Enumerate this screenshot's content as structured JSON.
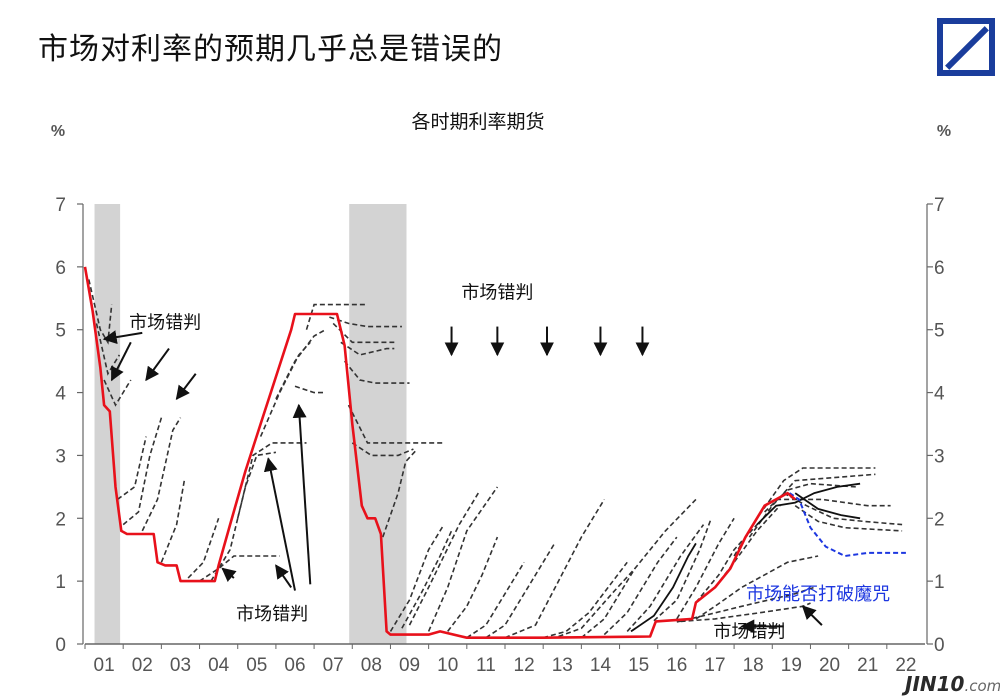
{
  "header": {
    "title": "市场对利率的预期几乎总是错误的"
  },
  "brand": {
    "logo": "deutsche-bank-logo",
    "color": "#1a3d9c"
  },
  "watermark": {
    "text": "JIN10",
    "suffix": ".com"
  },
  "chart_data": {
    "type": "line",
    "title": "各时期利率期货",
    "ylabel_left": "%",
    "ylabel_right": "%",
    "ylim": [
      0,
      7
    ],
    "yticks": [
      "0",
      "1",
      "2",
      "3",
      "4",
      "5",
      "6",
      "7"
    ],
    "xlim": [
      2001,
      2023
    ],
    "xticks": [
      "01",
      "02",
      "03",
      "04",
      "05",
      "06",
      "07",
      "08",
      "09",
      "10",
      "11",
      "12",
      "13",
      "14",
      "15",
      "16",
      "17",
      "18",
      "19",
      "20",
      "21",
      "22"
    ],
    "colors": {
      "actual": "#e8111b",
      "futures": "#333333",
      "latest_futures": "#1d37e0",
      "recession": "#d3d3d3"
    },
    "recessions": [
      [
        2001.25,
        2001.92
      ],
      [
        2007.92,
        2009.42
      ]
    ],
    "series": [
      {
        "values": [
          [
            2001.0,
            6.0
          ],
          [
            2001.2,
            5.3
          ],
          [
            2001.4,
            4.4
          ],
          [
            2001.5,
            3.8
          ],
          [
            2001.65,
            3.7
          ],
          [
            2001.8,
            2.5
          ],
          [
            2001.95,
            1.8
          ],
          [
            2002.1,
            1.75
          ],
          [
            2002.5,
            1.75
          ],
          [
            2002.8,
            1.75
          ],
          [
            2002.9,
            1.3
          ],
          [
            2003.1,
            1.25
          ],
          [
            2003.4,
            1.25
          ],
          [
            2003.5,
            1.0
          ],
          [
            2004.4,
            1.0
          ],
          [
            2004.5,
            1.25
          ],
          [
            2004.8,
            1.9
          ],
          [
            2005.2,
            2.75
          ],
          [
            2005.6,
            3.5
          ],
          [
            2006.0,
            4.25
          ],
          [
            2006.4,
            5.0
          ],
          [
            2006.5,
            5.25
          ],
          [
            2007.6,
            5.25
          ],
          [
            2007.8,
            4.75
          ],
          [
            2008.0,
            3.5
          ],
          [
            2008.25,
            2.2
          ],
          [
            2008.4,
            2.0
          ],
          [
            2008.6,
            2.0
          ],
          [
            2008.75,
            1.75
          ],
          [
            2008.9,
            0.2
          ],
          [
            2009.0,
            0.15
          ],
          [
            2010.0,
            0.15
          ],
          [
            2010.3,
            0.2
          ],
          [
            2011.0,
            0.1
          ],
          [
            2013.0,
            0.1
          ],
          [
            2015.8,
            0.12
          ],
          [
            2015.95,
            0.36
          ],
          [
            2016.9,
            0.4
          ],
          [
            2017.0,
            0.66
          ],
          [
            2017.5,
            0.9
          ],
          [
            2017.9,
            1.2
          ],
          [
            2018.3,
            1.7
          ],
          [
            2018.8,
            2.2
          ],
          [
            2019.4,
            2.4
          ],
          [
            2019.6,
            2.3
          ]
        ]
      }
    ],
    "futures_paths": [
      [
        [
          2001.1,
          5.8
        ],
        [
          2001.4,
          5.0
        ],
        [
          2001.6,
          4.8
        ],
        [
          2001.7,
          5.4
        ]
      ],
      [
        [
          2001.3,
          5.1
        ],
        [
          2001.6,
          4.3
        ],
        [
          2001.9,
          4.6
        ]
      ],
      [
        [
          2001.5,
          4.2
        ],
        [
          2001.8,
          3.8
        ],
        [
          2002.2,
          4.2
        ]
      ],
      [
        [
          2001.85,
          2.3
        ],
        [
          2002.3,
          2.5
        ],
        [
          2002.6,
          3.3
        ]
      ],
      [
        [
          2002.0,
          1.9
        ],
        [
          2002.4,
          2.1
        ],
        [
          2002.7,
          3.0
        ],
        [
          2003.0,
          3.6
        ]
      ],
      [
        [
          2002.5,
          1.8
        ],
        [
          2002.9,
          2.3
        ],
        [
          2003.3,
          3.4
        ],
        [
          2003.5,
          3.6
        ]
      ],
      [
        [
          2003.0,
          1.3
        ],
        [
          2003.4,
          1.9
        ],
        [
          2003.6,
          2.6
        ]
      ],
      [
        [
          2003.7,
          1.05
        ],
        [
          2004.1,
          1.3
        ],
        [
          2004.5,
          2.0
        ]
      ],
      [
        [
          2004.0,
          1.0
        ],
        [
          2004.5,
          1.2
        ],
        [
          2004.9,
          1.4
        ],
        [
          2006.1,
          1.4
        ]
      ],
      [
        [
          2004.3,
          1.0
        ],
        [
          2004.8,
          1.5
        ],
        [
          2005.2,
          2.5
        ],
        [
          2005.5,
          3.0
        ],
        [
          2006.0,
          3.05
        ]
      ],
      [
        [
          2005.0,
          2.0
        ],
        [
          2005.4,
          3.0
        ],
        [
          2005.9,
          3.2
        ],
        [
          2006.8,
          3.2
        ]
      ],
      [
        [
          2005.6,
          3.3
        ],
        [
          2006.1,
          4.0
        ],
        [
          2006.6,
          4.6
        ],
        [
          2006.9,
          4.8
        ]
      ],
      [
        [
          2006.0,
          3.9
        ],
        [
          2006.5,
          4.5
        ],
        [
          2007.0,
          4.9
        ],
        [
          2007.3,
          5.0
        ]
      ],
      [
        [
          2006.5,
          4.1
        ],
        [
          2007.0,
          4.0
        ],
        [
          2007.3,
          4.0
        ]
      ],
      [
        [
          2006.8,
          5.0
        ],
        [
          2007.0,
          5.4
        ],
        [
          2007.6,
          5.4
        ],
        [
          2008.4,
          5.4
        ]
      ],
      [
        [
          2007.4,
          5.2
        ],
        [
          2007.9,
          5.1
        ],
        [
          2008.4,
          5.05
        ],
        [
          2009.3,
          5.05
        ]
      ],
      [
        [
          2007.5,
          5.1
        ],
        [
          2008.0,
          4.8
        ],
        [
          2009.1,
          4.8
        ]
      ],
      [
        [
          2007.7,
          4.8
        ],
        [
          2008.2,
          4.6
        ],
        [
          2008.9,
          4.7
        ],
        [
          2009.1,
          4.7
        ]
      ],
      [
        [
          2007.8,
          4.5
        ],
        [
          2008.2,
          4.2
        ],
        [
          2008.6,
          4.15
        ],
        [
          2009.5,
          4.15
        ]
      ],
      [
        [
          2007.9,
          3.8
        ],
        [
          2008.4,
          3.2
        ],
        [
          2009.0,
          3.2
        ],
        [
          2010.4,
          3.2
        ]
      ],
      [
        [
          2008.0,
          3.2
        ],
        [
          2008.5,
          3.0
        ],
        [
          2009.2,
          3.0
        ],
        [
          2009.6,
          3.1
        ]
      ],
      [
        [
          2008.8,
          1.7
        ],
        [
          2009.2,
          2.4
        ],
        [
          2009.4,
          2.9
        ],
        [
          2009.7,
          3.1
        ]
      ],
      [
        [
          2009.0,
          0.2
        ],
        [
          2009.5,
          0.7
        ],
        [
          2010.0,
          1.5
        ],
        [
          2010.4,
          1.9
        ]
      ],
      [
        [
          2009.3,
          0.25
        ],
        [
          2009.8,
          0.8
        ],
        [
          2010.3,
          1.4
        ],
        [
          2010.6,
          1.8
        ]
      ],
      [
        [
          2009.5,
          0.3
        ],
        [
          2010.0,
          0.9
        ],
        [
          2010.8,
          1.9
        ],
        [
          2011.3,
          2.4
        ]
      ],
      [
        [
          2010.0,
          0.2
        ],
        [
          2010.5,
          0.9
        ],
        [
          2011.0,
          1.8
        ],
        [
          2011.8,
          2.5
        ]
      ],
      [
        [
          2010.5,
          0.2
        ],
        [
          2011.0,
          0.6
        ],
        [
          2011.4,
          1.1
        ],
        [
          2011.8,
          1.7
        ]
      ],
      [
        [
          2011.0,
          0.1
        ],
        [
          2011.5,
          0.3
        ],
        [
          2012.0,
          0.8
        ],
        [
          2012.5,
          1.3
        ]
      ],
      [
        [
          2011.5,
          0.1
        ],
        [
          2012.0,
          0.3
        ],
        [
          2012.6,
          0.9
        ],
        [
          2013.3,
          1.6
        ]
      ],
      [
        [
          2012.0,
          0.1
        ],
        [
          2012.8,
          0.3
        ],
        [
          2013.4,
          1.0
        ],
        [
          2014.0,
          1.7
        ],
        [
          2014.6,
          2.3
        ]
      ],
      [
        [
          2013.0,
          0.1
        ],
        [
          2013.6,
          0.2
        ],
        [
          2014.2,
          0.5
        ],
        [
          2015.2,
          1.3
        ]
      ],
      [
        [
          2013.4,
          0.12
        ],
        [
          2014.0,
          0.25
        ],
        [
          2014.8,
          0.8
        ],
        [
          2015.4,
          1.2
        ]
      ],
      [
        [
          2014.0,
          0.1
        ],
        [
          2014.6,
          0.4
        ],
        [
          2015.4,
          1.2
        ],
        [
          2016.2,
          1.8
        ],
        [
          2017.0,
          2.3
        ]
      ],
      [
        [
          2014.6,
          0.15
        ],
        [
          2015.2,
          0.5
        ],
        [
          2016.0,
          1.3
        ],
        [
          2016.5,
          1.7
        ]
      ],
      [
        [
          2015.2,
          0.2
        ],
        [
          2015.8,
          0.6
        ],
        [
          2016.6,
          1.4
        ],
        [
          2017.2,
          1.9
        ]
      ],
      [
        [
          2015.9,
          0.37
        ],
        [
          2016.5,
          0.7
        ],
        [
          2017.1,
          1.5
        ],
        [
          2017.4,
          2.0
        ]
      ],
      [
        [
          2016.5,
          0.4
        ],
        [
          2017.0,
          0.9
        ],
        [
          2017.6,
          1.6
        ],
        [
          2018.0,
          2.0
        ]
      ],
      [
        [
          2017.0,
          0.66
        ],
        [
          2017.6,
          1.1
        ],
        [
          2018.0,
          1.5
        ],
        [
          2018.6,
          1.9
        ]
      ],
      [
        [
          2017.5,
          0.9
        ],
        [
          2018.0,
          1.3
        ],
        [
          2018.6,
          1.8
        ],
        [
          2019.2,
          2.2
        ]
      ],
      [
        [
          2018.0,
          1.4
        ],
        [
          2018.6,
          2.0
        ],
        [
          2019.3,
          2.6
        ],
        [
          2019.8,
          2.8
        ],
        [
          2021.7,
          2.8
        ]
      ],
      [
        [
          2018.4,
          1.7
        ],
        [
          2019.0,
          2.2
        ],
        [
          2019.6,
          2.6
        ],
        [
          2021.7,
          2.7
        ]
      ],
      [
        [
          2018.8,
          2.1
        ],
        [
          2019.4,
          2.45
        ],
        [
          2020.0,
          2.55
        ],
        [
          2021.2,
          2.5
        ]
      ],
      [
        [
          2019.1,
          2.3
        ],
        [
          2019.6,
          2.3
        ],
        [
          2020.3,
          2.3
        ],
        [
          2021.5,
          2.2
        ],
        [
          2022.1,
          2.2
        ]
      ],
      [
        [
          2019.3,
          2.4
        ],
        [
          2019.9,
          2.2
        ],
        [
          2020.6,
          2.0
        ],
        [
          2021.4,
          1.95
        ],
        [
          2022.4,
          1.9
        ]
      ],
      [
        [
          2019.6,
          2.2
        ],
        [
          2020.2,
          1.95
        ],
        [
          2020.9,
          1.85
        ],
        [
          2022.4,
          1.8
        ]
      ],
      [
        [
          2017.0,
          0.4
        ],
        [
          2017.5,
          0.6
        ],
        [
          2018.2,
          0.9
        ],
        [
          2019.4,
          1.3
        ],
        [
          2020.2,
          1.4
        ]
      ],
      [
        [
          2016.5,
          0.35
        ],
        [
          2017.2,
          0.45
        ],
        [
          2018.2,
          0.6
        ],
        [
          2019.6,
          0.8
        ],
        [
          2020.1,
          0.9
        ]
      ],
      [
        [
          2016.6,
          0.36
        ],
        [
          2017.5,
          0.4
        ],
        [
          2018.7,
          0.5
        ],
        [
          2019.8,
          0.6
        ],
        [
          2020.0,
          0.65
        ]
      ]
    ],
    "futures_solid": [
      [
        [
          2015.3,
          0.2
        ],
        [
          2015.9,
          0.45
        ],
        [
          2016.4,
          0.9
        ],
        [
          2016.8,
          1.4
        ],
        [
          2017.0,
          1.6
        ]
      ],
      [
        [
          2018.6,
          1.9
        ],
        [
          2019.1,
          2.2
        ],
        [
          2019.6,
          2.25
        ],
        [
          2020.1,
          2.4
        ],
        [
          2020.7,
          2.5
        ],
        [
          2021.3,
          2.55
        ]
      ],
      [
        [
          2019.6,
          2.4
        ],
        [
          2020.2,
          2.15
        ],
        [
          2020.8,
          2.05
        ],
        [
          2021.3,
          2.0
        ]
      ]
    ],
    "latest_futures": [
      [
        2019.45,
        2.4
      ],
      [
        2019.7,
        2.3
      ],
      [
        2020.0,
        1.85
      ],
      [
        2020.4,
        1.55
      ],
      [
        2020.9,
        1.4
      ],
      [
        2021.5,
        1.45
      ],
      [
        2022.5,
        1.45
      ]
    ],
    "arrows": [
      [
        [
          2002.5,
          4.95
        ],
        [
          2001.5,
          4.85
        ]
      ],
      [
        [
          2002.2,
          4.8
        ],
        [
          2001.7,
          4.2
        ]
      ],
      [
        [
          2003.2,
          4.7
        ],
        [
          2002.6,
          4.2
        ]
      ],
      [
        [
          2003.9,
          4.3
        ],
        [
          2003.4,
          3.9
        ]
      ],
      [
        [
          2004.9,
          1.05
        ],
        [
          2004.6,
          1.2
        ]
      ],
      [
        [
          2006.4,
          0.9
        ],
        [
          2006.0,
          1.25
        ]
      ],
      [
        [
          2006.5,
          0.85
        ],
        [
          2005.8,
          2.95
        ]
      ],
      [
        [
          2006.9,
          0.95
        ],
        [
          2006.6,
          3.8
        ]
      ],
      [
        [
          2010.6,
          5.05
        ],
        [
          2010.6,
          4.6
        ]
      ],
      [
        [
          2011.8,
          5.05
        ],
        [
          2011.8,
          4.6
        ]
      ],
      [
        [
          2013.1,
          5.05
        ],
        [
          2013.1,
          4.6
        ]
      ],
      [
        [
          2014.5,
          5.05
        ],
        [
          2014.5,
          4.6
        ]
      ],
      [
        [
          2015.6,
          5.05
        ],
        [
          2015.6,
          4.6
        ]
      ],
      [
        [
          2019.3,
          0.28
        ],
        [
          2018.2,
          0.28
        ]
      ],
      [
        [
          2020.3,
          0.3
        ],
        [
          2019.8,
          0.6
        ]
      ]
    ],
    "annotations": [
      {
        "text": "市场错判",
        "x": 2003.1,
        "y": 5.02
      },
      {
        "text": "市场错判",
        "x": 2011.8,
        "y": 5.5
      },
      {
        "text": "市场错判",
        "x": 2005.9,
        "y": 0.38
      },
      {
        "text": "市场错判",
        "x": 2018.4,
        "y": 0.1
      },
      {
        "text": "市场能否打破魔咒",
        "x": 2020.2,
        "y": 0.7,
        "color": "#1d37e0"
      }
    ]
  }
}
